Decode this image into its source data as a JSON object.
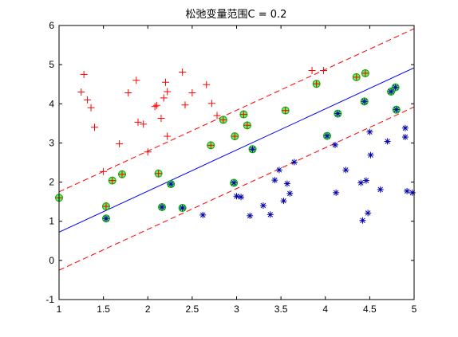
{
  "chart_data": {
    "type": "scatter",
    "title": "松弛变量范围C = 0.2",
    "xlim": [
      1,
      5
    ],
    "ylim": [
      -1,
      6
    ],
    "xticks": [
      "1",
      "1.5",
      "2",
      "2.5",
      "3",
      "3.5",
      "4",
      "4.5",
      "5"
    ],
    "yticks": [
      "-1",
      "0",
      "1",
      "2",
      "3",
      "4",
      "5",
      "6"
    ],
    "grid": false,
    "colors": {
      "positive": "#ff0000",
      "negative": "#0000aa",
      "support_fill": "#66ee66",
      "support_edge": "#00aa00",
      "boundary": "#0000ff",
      "margin": "#ff0000"
    },
    "lines": [
      {
        "kind": "boundary",
        "style": "solid",
        "x": [
          1,
          5
        ],
        "y": [
          0.72,
          4.92
        ]
      },
      {
        "kind": "margin",
        "style": "dashed",
        "x": [
          1,
          5
        ],
        "y": [
          1.75,
          5.92
        ]
      },
      {
        "kind": "margin",
        "style": "dashed",
        "x": [
          1,
          5
        ],
        "y": [
          -0.25,
          3.92
        ]
      }
    ],
    "series": [
      {
        "marker": "plus",
        "points": [
          [
            1.25,
            4.3
          ],
          [
            1.28,
            4.75
          ],
          [
            1.32,
            4.1
          ],
          [
            1.36,
            3.9
          ],
          [
            1.4,
            3.4
          ],
          [
            1.5,
            2.27
          ],
          [
            1.68,
            2.98
          ],
          [
            1.78,
            4.28
          ],
          [
            1.87,
            4.6
          ],
          [
            1.89,
            3.53
          ],
          [
            1.95,
            3.48
          ],
          [
            2.0,
            2.77
          ],
          [
            2.08,
            3.93
          ],
          [
            2.1,
            3.96
          ],
          [
            2.12,
            2.22
          ],
          [
            2.15,
            3.63
          ],
          [
            2.18,
            4.15
          ],
          [
            2.2,
            4.55
          ],
          [
            2.22,
            4.31
          ],
          [
            2.22,
            3.17
          ],
          [
            2.39,
            4.81
          ],
          [
            2.42,
            3.97
          ],
          [
            2.5,
            4.28
          ],
          [
            2.66,
            4.49
          ],
          [
            2.72,
            4.01
          ],
          [
            2.78,
            3.7
          ],
          [
            2.85,
            3.59
          ],
          [
            2.98,
            3.17
          ],
          [
            3.08,
            3.73
          ],
          [
            3.12,
            3.45
          ],
          [
            3.55,
            3.83
          ],
          [
            3.85,
            4.85
          ],
          [
            3.98,
            4.85
          ],
          [
            4.35,
            4.68
          ],
          [
            4.45,
            4.78
          ],
          [
            1.0,
            1.6
          ],
          [
            1.53,
            1.38
          ],
          [
            1.6,
            2.04
          ],
          [
            1.71,
            2.2
          ],
          [
            2.71,
            2.94
          ],
          [
            3.9,
            4.51
          ]
        ]
      },
      {
        "marker": "star",
        "points": [
          [
            1.53,
            1.07
          ],
          [
            2.16,
            1.36
          ],
          [
            2.26,
            1.95
          ],
          [
            2.39,
            1.34
          ],
          [
            2.62,
            1.16
          ],
          [
            2.97,
            1.98
          ],
          [
            3.0,
            1.64
          ],
          [
            3.05,
            1.62
          ],
          [
            3.15,
            1.14
          ],
          [
            3.18,
            2.84
          ],
          [
            3.3,
            1.4
          ],
          [
            3.38,
            1.17
          ],
          [
            3.43,
            2.05
          ],
          [
            3.48,
            2.31
          ],
          [
            3.53,
            1.52
          ],
          [
            3.57,
            1.96
          ],
          [
            3.6,
            1.71
          ],
          [
            3.65,
            2.51
          ],
          [
            4.02,
            3.18
          ],
          [
            4.11,
            2.95
          ],
          [
            4.12,
            1.73
          ],
          [
            4.14,
            3.75
          ],
          [
            4.23,
            2.31
          ],
          [
            4.4,
            1.98
          ],
          [
            4.42,
            1.02
          ],
          [
            4.44,
            4.06
          ],
          [
            4.46,
            2.04
          ],
          [
            4.48,
            1.21
          ],
          [
            4.5,
            3.28
          ],
          [
            4.51,
            2.69
          ],
          [
            4.62,
            1.81
          ],
          [
            4.7,
            3.04
          ],
          [
            4.74,
            4.31
          ],
          [
            4.79,
            4.42
          ],
          [
            4.8,
            3.85
          ],
          [
            4.9,
            3.38
          ],
          [
            4.9,
            3.15
          ],
          [
            4.92,
            1.77
          ],
          [
            4.98,
            1.73
          ]
        ]
      }
    ],
    "support_vectors": [
      [
        1.0,
        1.6
      ],
      [
        1.53,
        1.38
      ],
      [
        1.53,
        1.07
      ],
      [
        1.6,
        2.04
      ],
      [
        1.71,
        2.2
      ],
      [
        2.12,
        2.22
      ],
      [
        2.16,
        1.36
      ],
      [
        2.26,
        1.95
      ],
      [
        2.39,
        1.34
      ],
      [
        2.71,
        2.94
      ],
      [
        2.85,
        3.59
      ],
      [
        2.97,
        1.98
      ],
      [
        2.98,
        3.17
      ],
      [
        3.08,
        3.73
      ],
      [
        3.12,
        3.45
      ],
      [
        3.18,
        2.84
      ],
      [
        3.55,
        3.83
      ],
      [
        3.9,
        4.51
      ],
      [
        4.02,
        3.18
      ],
      [
        4.14,
        3.75
      ],
      [
        4.35,
        4.68
      ],
      [
        4.44,
        4.06
      ],
      [
        4.45,
        4.78
      ],
      [
        4.74,
        4.31
      ],
      [
        4.79,
        4.42
      ],
      [
        4.8,
        3.85
      ]
    ]
  }
}
